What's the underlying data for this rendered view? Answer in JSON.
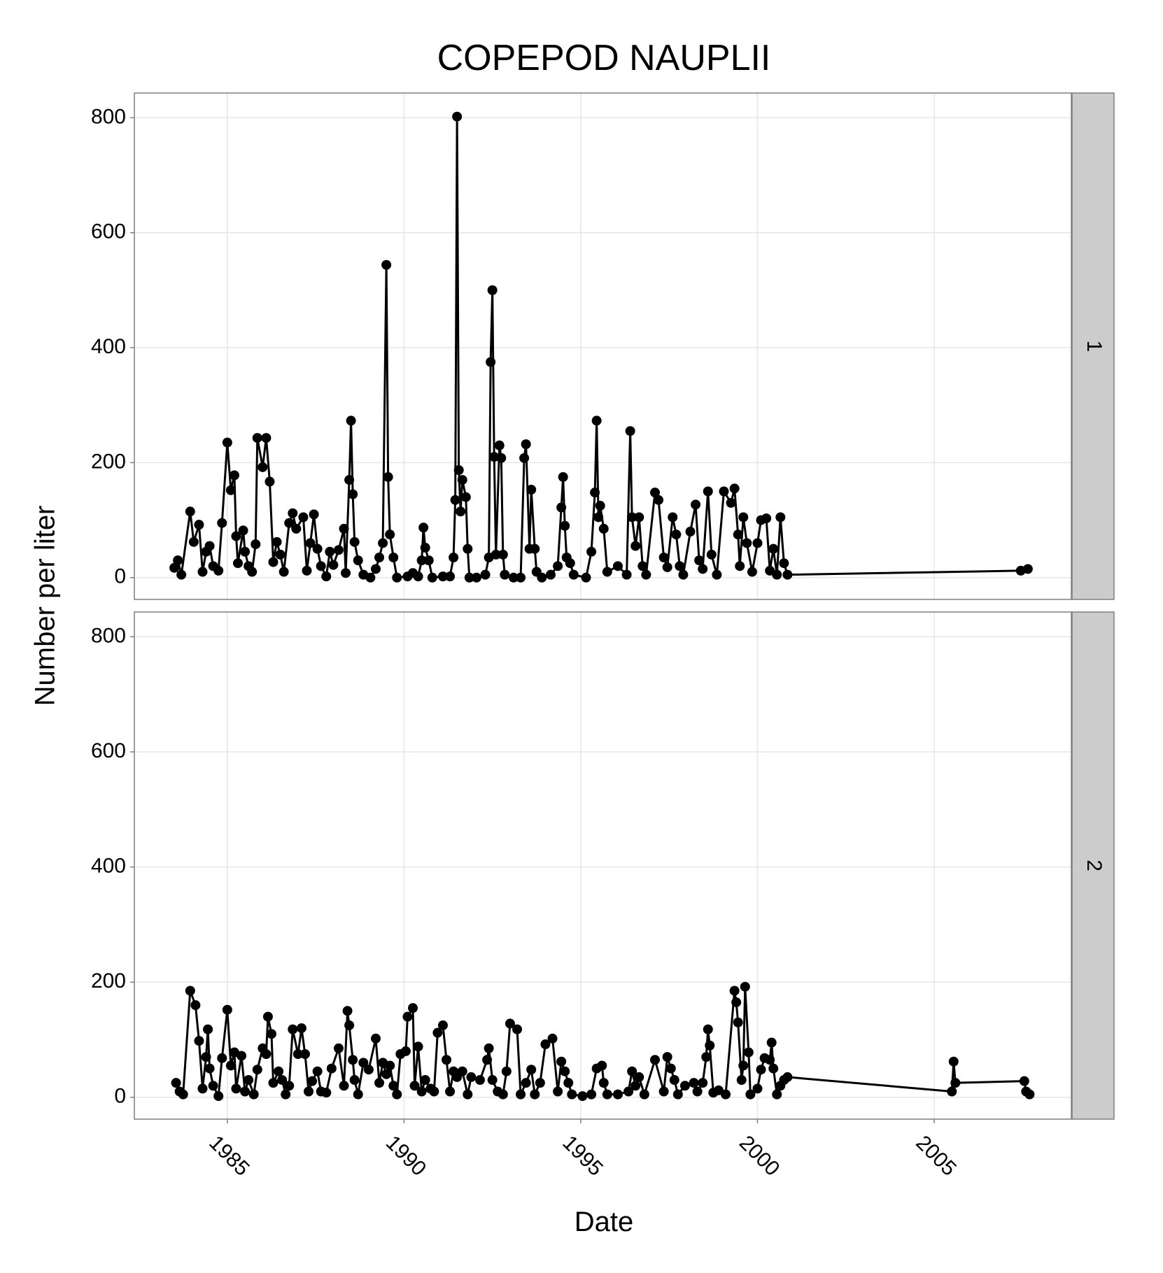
{
  "chart_data": [
    {
      "type": "line",
      "title": "COPEPOD NAUPLII",
      "y_label": "Number per liter",
      "panel": "1",
      "color": "#000000",
      "markers": true,
      "grid": true,
      "xlim": [
        1982.37,
        2008.88
      ],
      "ylim": [
        -38,
        843
      ],
      "xticks": [
        1985,
        1990,
        1995,
        2000,
        2005
      ],
      "yticks": [
        0,
        200,
        400,
        600,
        800
      ],
      "x": [
        1983.5,
        1983.6,
        1983.7,
        1983.95,
        1984.05,
        1984.2,
        1984.3,
        1984.4,
        1984.5,
        1984.6,
        1984.75,
        1984.85,
        1985.0,
        1985.1,
        1985.2,
        1985.25,
        1985.3,
        1985.45,
        1985.5,
        1985.6,
        1985.7,
        1985.8,
        1985.85,
        1986.0,
        1986.1,
        1986.2,
        1986.3,
        1986.4,
        1986.5,
        1986.6,
        1986.75,
        1986.85,
        1986.95,
        1987.15,
        1987.25,
        1987.35,
        1987.45,
        1987.55,
        1987.65,
        1987.8,
        1987.9,
        1988.0,
        1988.15,
        1988.3,
        1988.35,
        1988.45,
        1988.5,
        1988.55,
        1988.6,
        1988.7,
        1988.85,
        1989.05,
        1989.2,
        1989.3,
        1989.4,
        1989.5,
        1989.55,
        1989.6,
        1989.7,
        1989.8,
        1990.1,
        1990.25,
        1990.4,
        1990.5,
        1990.55,
        1990.6,
        1990.7,
        1990.8,
        1991.1,
        1991.3,
        1991.4,
        1991.45,
        1991.5,
        1991.55,
        1991.6,
        1991.65,
        1991.75,
        1991.8,
        1991.85,
        1992.05,
        1992.3,
        1992.4,
        1992.45,
        1992.5,
        1992.55,
        1992.6,
        1992.7,
        1992.75,
        1992.8,
        1992.85,
        1993.1,
        1993.3,
        1993.4,
        1993.45,
        1993.55,
        1993.6,
        1993.7,
        1993.75,
        1993.9,
        1994.15,
        1994.35,
        1994.45,
        1994.5,
        1994.55,
        1994.6,
        1994.7,
        1994.8,
        1995.15,
        1995.3,
        1995.4,
        1995.45,
        1995.5,
        1995.55,
        1995.65,
        1995.75,
        1996.05,
        1996.3,
        1996.4,
        1996.45,
        1996.55,
        1996.65,
        1996.75,
        1996.85,
        1997.1,
        1997.2,
        1997.35,
        1997.45,
        1997.6,
        1997.7,
        1997.8,
        1997.9,
        1998.1,
        1998.25,
        1998.35,
        1998.45,
        1998.6,
        1998.7,
        1998.85,
        1999.05,
        1999.25,
        1999.35,
        1999.45,
        1999.5,
        1999.6,
        1999.7,
        1999.85,
        2000.0,
        2000.1,
        2000.25,
        2000.35,
        2000.45,
        2000.55,
        2000.65,
        2000.75,
        2000.85,
        2007.45,
        2007.65
      ],
      "values": [
        17,
        30,
        5,
        115,
        62,
        92,
        10,
        45,
        55,
        20,
        12,
        95,
        235,
        152,
        178,
        72,
        25,
        82,
        45,
        20,
        10,
        58,
        243,
        192,
        243,
        167,
        27,
        62,
        40,
        10,
        95,
        112,
        85,
        105,
        12,
        60,
        110,
        50,
        20,
        2,
        45,
        22,
        48,
        85,
        8,
        170,
        273,
        145,
        62,
        30,
        5,
        0,
        15,
        35,
        60,
        544,
        175,
        75,
        35,
        0,
        2,
        8,
        2,
        30,
        87,
        52,
        30,
        0,
        2,
        2,
        35,
        135,
        802,
        187,
        115,
        170,
        140,
        50,
        0,
        0,
        5,
        35,
        375,
        500,
        210,
        40,
        230,
        208,
        40,
        5,
        0,
        0,
        208,
        232,
        50,
        153,
        50,
        10,
        0,
        5,
        20,
        122,
        175,
        90,
        35,
        25,
        5,
        0,
        45,
        148,
        273,
        105,
        125,
        85,
        10,
        20,
        5,
        255,
        105,
        55,
        105,
        20,
        5,
        148,
        135,
        35,
        18,
        105,
        75,
        20,
        5,
        80,
        127,
        30,
        15,
        150,
        40,
        5,
        150,
        130,
        155,
        75,
        20,
        105,
        60,
        10,
        60,
        100,
        103,
        12,
        50,
        5,
        105,
        25,
        5,
        12,
        15
      ]
    },
    {
      "type": "line",
      "x_label": "Date",
      "panel": "2",
      "color": "#000000",
      "markers": true,
      "grid": true,
      "xlim": [
        1982.37,
        2008.88
      ],
      "ylim": [
        -38,
        843
      ],
      "xticks": [
        1985,
        1990,
        1995,
        2000,
        2005
      ],
      "yticks": [
        0,
        200,
        400,
        600,
        800
      ],
      "x": [
        1983.55,
        1983.65,
        1983.75,
        1983.95,
        1984.1,
        1984.2,
        1984.3,
        1984.4,
        1984.45,
        1984.5,
        1984.6,
        1984.75,
        1984.85,
        1985.0,
        1985.1,
        1985.2,
        1985.25,
        1985.4,
        1985.5,
        1985.6,
        1985.75,
        1985.85,
        1986.0,
        1986.1,
        1986.15,
        1986.25,
        1986.3,
        1986.45,
        1986.55,
        1986.65,
        1986.75,
        1986.85,
        1987.0,
        1987.1,
        1987.2,
        1987.3,
        1987.4,
        1987.55,
        1987.65,
        1987.8,
        1987.95,
        1988.15,
        1988.3,
        1988.4,
        1988.45,
        1988.55,
        1988.6,
        1988.7,
        1988.85,
        1989.0,
        1989.2,
        1989.3,
        1989.4,
        1989.5,
        1989.6,
        1989.7,
        1989.8,
        1989.9,
        1990.05,
        1990.1,
        1990.25,
        1990.3,
        1990.4,
        1990.5,
        1990.6,
        1990.75,
        1990.85,
        1990.95,
        1991.1,
        1991.2,
        1991.3,
        1991.4,
        1991.5,
        1991.65,
        1991.8,
        1991.9,
        1992.15,
        1992.35,
        1992.4,
        1992.5,
        1992.65,
        1992.8,
        1992.9,
        1993.0,
        1993.2,
        1993.3,
        1993.45,
        1993.6,
        1993.7,
        1993.85,
        1994.0,
        1994.2,
        1994.35,
        1994.45,
        1994.55,
        1994.65,
        1994.75,
        1995.05,
        1995.3,
        1995.45,
        1995.6,
        1995.65,
        1995.75,
        1996.05,
        1996.35,
        1996.45,
        1996.55,
        1996.65,
        1996.8,
        1997.1,
        1997.35,
        1997.45,
        1997.55,
        1997.65,
        1997.75,
        1997.95,
        1998.2,
        1998.3,
        1998.45,
        1998.55,
        1998.6,
        1998.65,
        1998.75,
        1998.9,
        1999.1,
        1999.35,
        1999.4,
        1999.45,
        1999.55,
        1999.6,
        1999.65,
        1999.75,
        1999.8,
        2000.0,
        2000.1,
        2000.2,
        2000.35,
        2000.4,
        2000.45,
        2000.55,
        2000.65,
        2000.75,
        2000.85,
        2005.5,
        2005.55,
        2005.6,
        2007.55,
        2007.6,
        2007.7
      ],
      "values": [
        25,
        10,
        5,
        185,
        160,
        98,
        15,
        70,
        118,
        50,
        20,
        2,
        68,
        152,
        55,
        78,
        15,
        72,
        10,
        30,
        5,
        48,
        85,
        75,
        140,
        110,
        25,
        45,
        30,
        5,
        20,
        118,
        75,
        120,
        75,
        10,
        28,
        45,
        10,
        8,
        50,
        85,
        20,
        150,
        125,
        65,
        30,
        5,
        60,
        48,
        102,
        25,
        60,
        40,
        55,
        20,
        5,
        75,
        80,
        140,
        155,
        20,
        88,
        10,
        30,
        15,
        10,
        112,
        125,
        65,
        10,
        45,
        35,
        45,
        5,
        35,
        30,
        65,
        85,
        30,
        10,
        5,
        45,
        128,
        118,
        5,
        25,
        48,
        5,
        25,
        92,
        102,
        10,
        62,
        45,
        25,
        5,
        2,
        5,
        50,
        55,
        25,
        5,
        5,
        10,
        45,
        20,
        35,
        5,
        65,
        10,
        70,
        50,
        30,
        5,
        20,
        25,
        10,
        25,
        70,
        118,
        90,
        8,
        12,
        5,
        185,
        165,
        130,
        30,
        55,
        192,
        78,
        5,
        15,
        48,
        68,
        65,
        95,
        50,
        5,
        20,
        30,
        35,
        10,
        62,
        25,
        28,
        10,
        5
      ]
    }
  ]
}
